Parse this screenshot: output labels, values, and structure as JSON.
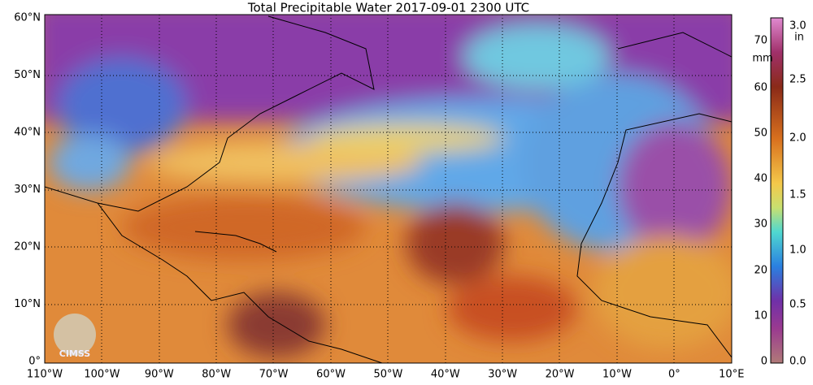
{
  "title": "Total Precipitable Water  2017-09-01 2300 UTC",
  "map": {
    "lat_labels": [
      "60°N",
      "50°N",
      "40°N",
      "30°N",
      "20°N",
      "10°N",
      "0°"
    ],
    "lon_labels": [
      "110°W",
      "100°W",
      "90°W",
      "80°W",
      "70°W",
      "60°W",
      "50°W",
      "40°W",
      "30°W",
      "20°W",
      "10°W",
      "0°",
      "10°E"
    ],
    "logo": "CIMSS"
  },
  "colorbar": {
    "mm_unit": "mm",
    "mm_labels": [
      "70",
      "60",
      "50",
      "40",
      "30",
      "20",
      "10",
      "0"
    ],
    "in_unit": "in",
    "in_labels": [
      "3.0",
      "2.5",
      "2.0",
      "1.5",
      "1.0",
      "0.5",
      "0.0"
    ]
  }
}
